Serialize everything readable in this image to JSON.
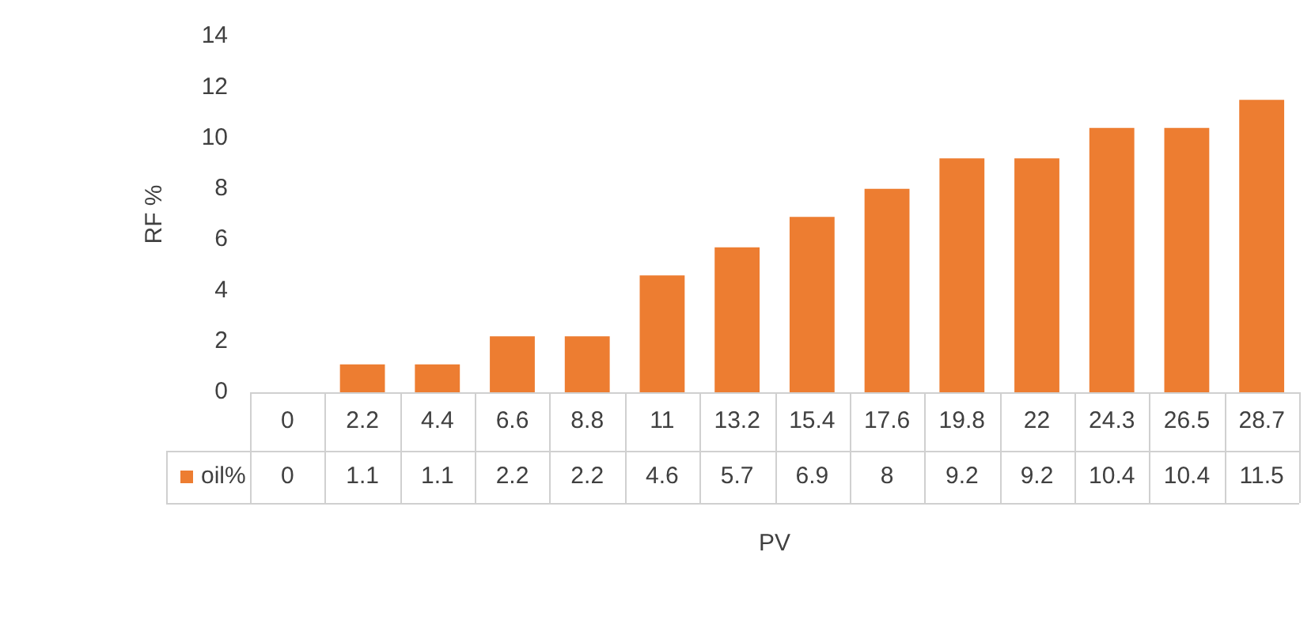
{
  "chart_data": {
    "type": "bar",
    "xlabel": "PV",
    "ylabel": "RF %",
    "categories": [
      "0",
      "2.2",
      "4.4",
      "6.6",
      "8.8",
      "11",
      "13.2",
      "15.4",
      "17.6",
      "19.8",
      "22",
      "24.3",
      "26.5",
      "28.7"
    ],
    "series": [
      {
        "name": "oil%",
        "color": "#ed7d31",
        "values": [
          0,
          1.1,
          1.1,
          2.2,
          2.2,
          4.6,
          5.7,
          6.9,
          8,
          9.2,
          9.2,
          10.4,
          10.4,
          11.5
        ]
      }
    ],
    "ylim": [
      0,
      14
    ],
    "yticks": [
      0,
      2,
      4,
      6,
      8,
      10,
      12,
      14
    ],
    "grid": false,
    "legend": "bottom",
    "data_labels": true
  }
}
